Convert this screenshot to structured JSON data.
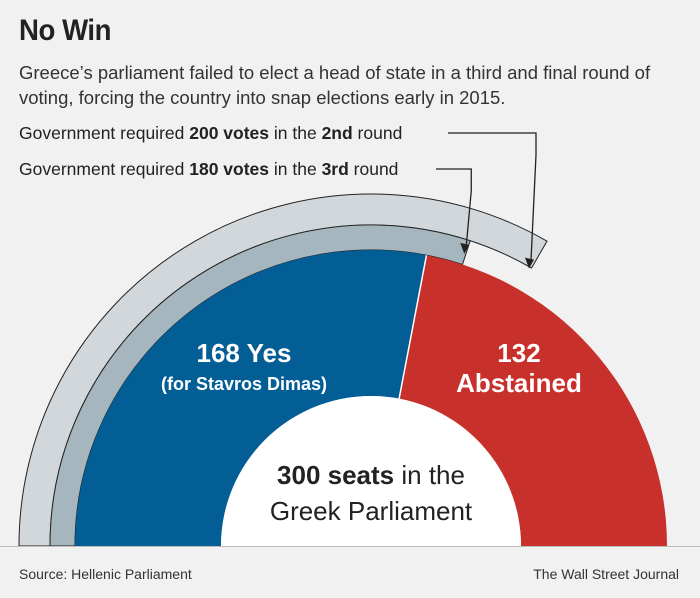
{
  "header": {
    "title": "No Win",
    "subtitle": "Greece’s parliament failed to elect a head of state in a third and final round of voting, forcing the country into snap elections early in 2015."
  },
  "annotations": {
    "round2": {
      "prefix": "Government required ",
      "bold1": "200 votes",
      "mid": " in the ",
      "bold2": "2nd",
      "suffix": " round"
    },
    "round3": {
      "prefix": "Government required ",
      "bold1": "180 votes",
      "mid": " in the ",
      "bold2": "3rd",
      "suffix": " round"
    }
  },
  "center_label": {
    "bold": "300 seats",
    "rest1": " in the",
    "line2": "Greek Parliament"
  },
  "footer": {
    "source": "Source: Hellenic Parliament",
    "credit": "The Wall Street Journal"
  },
  "chart_data": {
    "type": "pie",
    "total": 300,
    "series": [
      {
        "name": "Yes",
        "value": 168,
        "label_line1": "168 Yes",
        "label_line2": "(for Stavros Dimas)",
        "color": "#035e95"
      },
      {
        "name": "Abstained",
        "value": 132,
        "label_line1": "132",
        "label_line2": "Abstained",
        "color": "#c8302b"
      }
    ],
    "thresholds": [
      {
        "round": "2nd",
        "votes": 200
      },
      {
        "round": "3rd",
        "votes": 180
      }
    ],
    "colors": {
      "outer_band": "#d2d7db",
      "inner_band": "#a6b6bf",
      "hole": "#ffffff",
      "band_stroke": "#222222"
    }
  }
}
